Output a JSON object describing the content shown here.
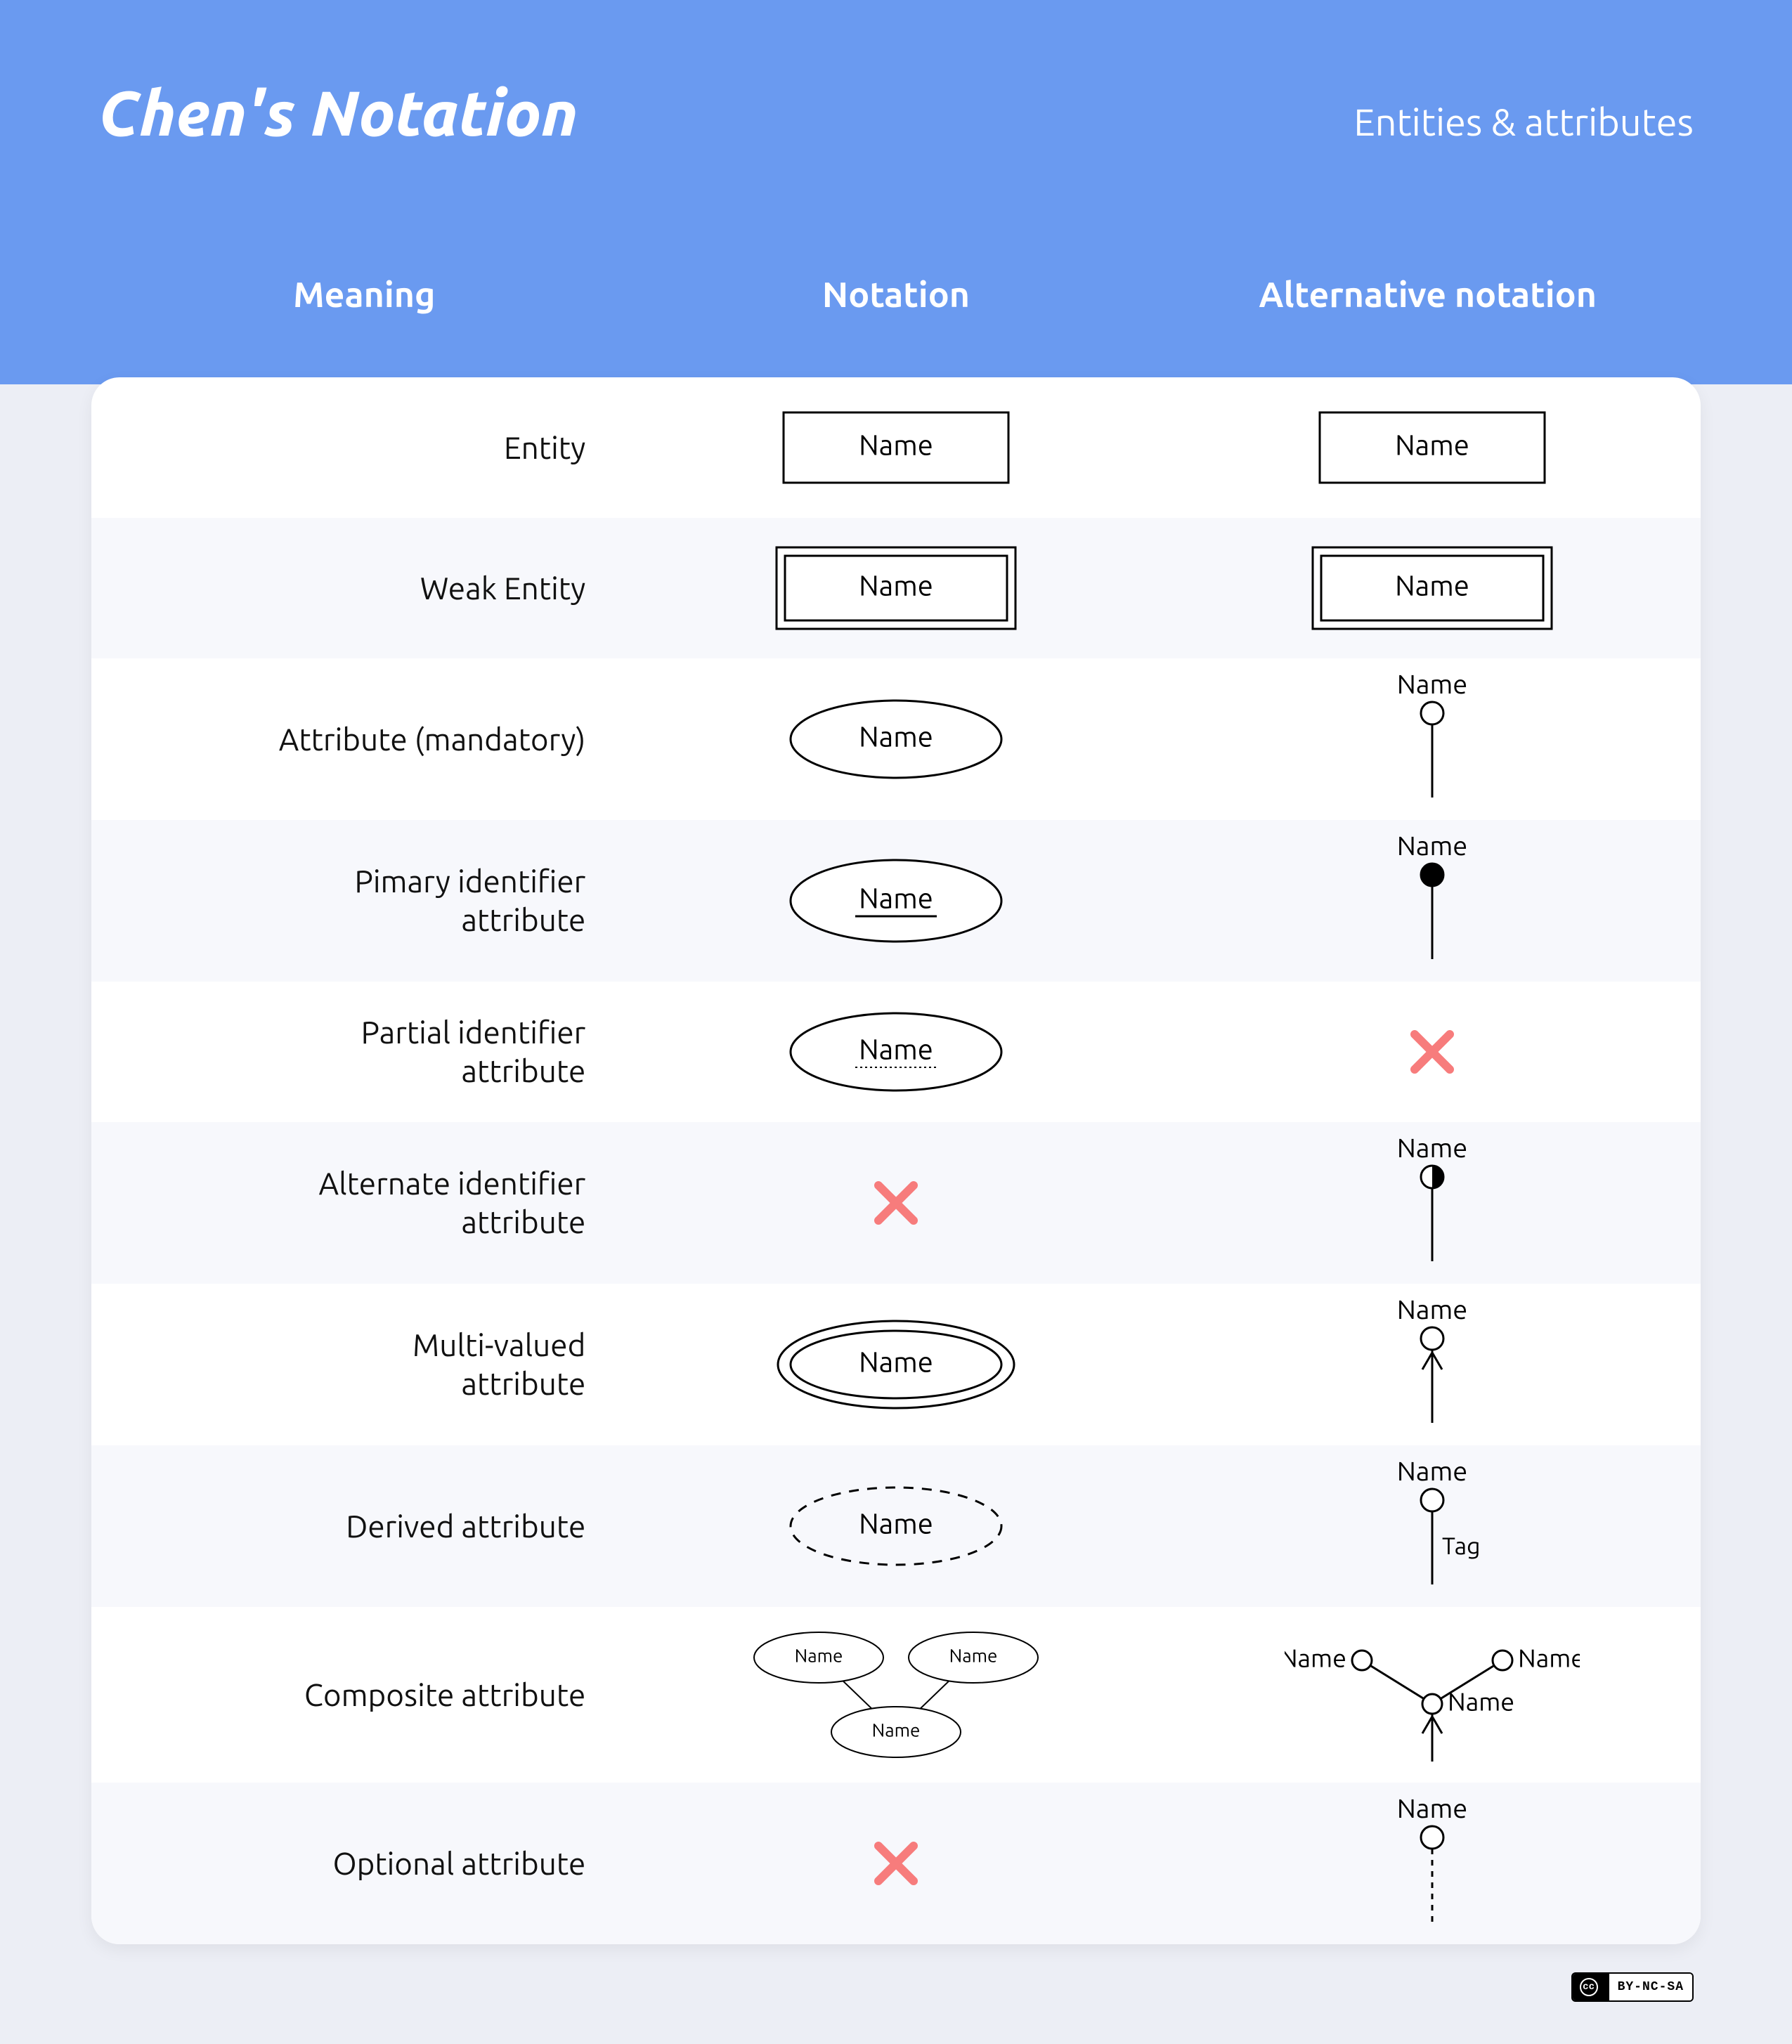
{
  "header": {
    "title": "Chen's Notation",
    "subtitle": "Entities & attributes",
    "bg_color": "#6a9af0"
  },
  "columns": {
    "meaning": "Meaning",
    "notation": "Notation",
    "alternative": "Alternative notation"
  },
  "style": {
    "notation_label": "Name",
    "tag_label": "Tag",
    "stroke_color": "#000000",
    "stroke_width": 3,
    "cross_color": "#f77c7c",
    "label_fontsize": 40,
    "small_label_fontsize": 26,
    "row_alt_bg": "#f7f8fc",
    "card_bg": "#ffffff",
    "page_bg": "#eceef5"
  },
  "rows": [
    {
      "meaning": "Entity",
      "notation": "rect",
      "alt": "rect"
    },
    {
      "meaning": "Weak Entity",
      "notation": "double-rect",
      "alt": "double-rect"
    },
    {
      "meaning": "Attribute (mandatory)",
      "notation": "ellipse",
      "alt": "pin-open"
    },
    {
      "meaning": "Pimary identifier\nattribute",
      "notation": "ellipse-underline",
      "alt": "pin-filled"
    },
    {
      "meaning": "Partial identifier\nattribute",
      "notation": "ellipse-dotted-underline",
      "alt": "cross"
    },
    {
      "meaning": "Alternate identifier\nattribute",
      "notation": "cross",
      "alt": "pin-half"
    },
    {
      "meaning": "Multi-valued\nattribute",
      "notation": "double-ellipse",
      "alt": "pin-arrow"
    },
    {
      "meaning": "Derived attribute",
      "notation": "dashed-ellipse",
      "alt": "pin-tag"
    },
    {
      "meaning": "Composite attribute",
      "notation": "composite-tree",
      "alt": "composite-pins"
    },
    {
      "meaning": "Optional attribute",
      "notation": "cross",
      "alt": "pin-open-dashed"
    }
  ],
  "license": {
    "cc": "CC",
    "terms": "BY-NC-SA"
  }
}
